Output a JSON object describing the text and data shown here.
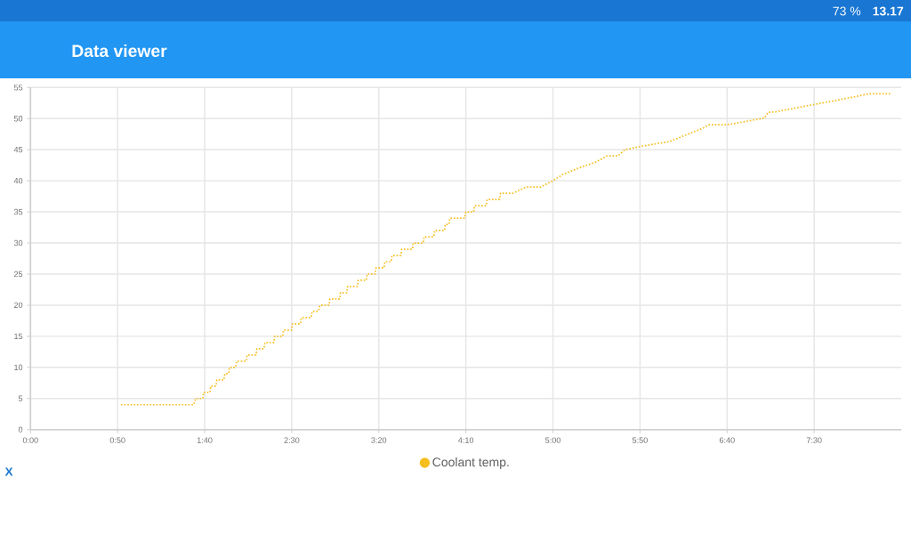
{
  "chart_data": {
    "type": "line",
    "title": "Data viewer",
    "xlabel": "X",
    "annotations": [
      "73 %",
      "13.17"
    ],
    "x": [
      52,
      93.8,
      94.8,
      98.9,
      99.4,
      103,
      103.5,
      106.5,
      107,
      111.1,
      111.6,
      113.7,
      114.2,
      117.8,
      118.3,
      123.9,
      124.4,
      129.5,
      130,
      134.1,
      134.6,
      139.7,
      140.2,
      144.8,
      145.3,
      149.9,
      150.4,
      155,
      155.5,
      161.1,
      161.7,
      165.2,
      166.3,
      171.4,
      171.9,
      177.5,
      178,
      181.6,
      182.1,
      187.7,
      188.2,
      192.8,
      193.3,
      197.9,
      198.4,
      203,
      203.5,
      207.1,
      207.6,
      212.7,
      213.2,
      219.3,
      219.8,
      225.5,
      226,
      231.6,
      232.1,
      237.7,
      238.2,
      240.3,
      240.8,
      249.4,
      249.9,
      254.5,
      255,
      261.7,
      262.2,
      269.4,
      269.9,
      277,
      284.7,
      292.9,
      300,
      305.6,
      314.3,
      324.5,
      331.1,
      337.3,
      341.3,
      350,
      360,
      366.8,
      385.7,
      389.8,
      400,
      421.5,
      423.5,
      428.1,
      450.6,
      462.3,
      481.7,
      494
    ],
    "series": [
      {
        "name": "Coolant temp.",
        "color": "#f6be1e",
        "values": [
          4,
          4,
          5,
          5,
          6,
          6,
          7,
          7,
          8,
          8,
          9,
          9,
          10,
          10,
          11,
          11,
          12,
          12,
          13,
          13,
          14,
          14,
          15,
          15,
          16,
          16,
          17,
          17,
          18,
          18,
          19,
          19,
          20,
          20,
          21,
          21,
          22,
          22,
          23,
          23,
          24,
          24,
          25,
          25,
          26,
          26,
          27,
          27,
          28,
          28,
          29,
          29,
          30,
          30,
          31,
          31,
          32,
          32,
          33,
          33,
          34,
          34,
          35,
          35,
          36,
          36,
          37,
          37,
          38,
          38,
          39,
          39,
          40,
          41,
          42,
          43,
          44,
          44,
          45,
          45.5,
          46,
          46.3,
          48.4,
          49,
          49,
          50.1,
          51,
          51.1,
          52.3,
          52.9,
          54,
          54
        ]
      }
    ],
    "xlim": [
      0,
      500
    ],
    "ylim": [
      0,
      55
    ],
    "xticks": [
      {
        "value": 0,
        "label": "0:00"
      },
      {
        "value": 50,
        "label": "0:50"
      },
      {
        "value": 100,
        "label": "1:40"
      },
      {
        "value": 150,
        "label": "2:30"
      },
      {
        "value": 200,
        "label": "3:20"
      },
      {
        "value": 250,
        "label": "4:10"
      },
      {
        "value": 300,
        "label": "5:00"
      },
      {
        "value": 350,
        "label": "5:50"
      },
      {
        "value": 400,
        "label": "6:40"
      },
      {
        "value": 450,
        "label": "7:30"
      }
    ],
    "yticks": [
      0,
      5,
      10,
      15,
      20,
      25,
      30,
      35,
      40,
      45,
      50,
      55
    ],
    "grid": true,
    "legend": "bottom",
    "line_style": "dotted"
  }
}
